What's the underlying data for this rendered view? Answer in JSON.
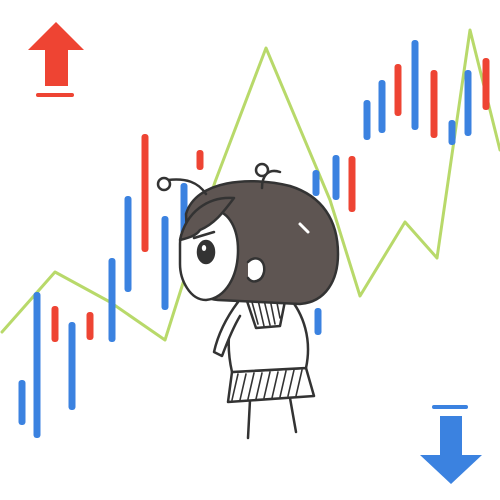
{
  "illustration": {
    "subject": "chibi-girl",
    "theme": "stock-chart"
  },
  "colors": {
    "background": "#ffffff",
    "up_candle": "#ee4433",
    "down_candle": "#3b82e0",
    "trend_line": "#b8d96a",
    "hair": "#5e5552",
    "outline": "#333333",
    "up_arrow": "#ee4433",
    "down_arrow": "#3b82e0",
    "skirt_hatch": "#333333"
  },
  "icons": {
    "top_left": "arrow-up-icon",
    "bottom_right": "arrow-down-icon"
  }
}
